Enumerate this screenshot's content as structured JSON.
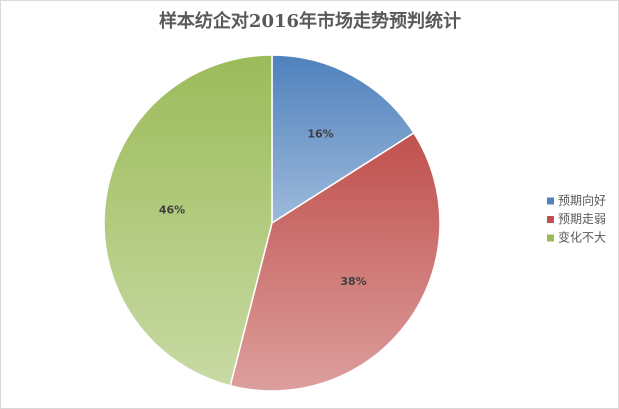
{
  "chart_data": {
    "type": "pie",
    "title": "样本纺企对2016年市场走势预判统计",
    "categories": [
      "预期向好",
      "预期走弱",
      "变化不大"
    ],
    "values": [
      16,
      38,
      46
    ],
    "value_labels": [
      "16%",
      "38%",
      "46%"
    ],
    "colors": [
      "#4f81bd",
      "#c0504d",
      "#9bbb59"
    ],
    "legend": "right"
  }
}
